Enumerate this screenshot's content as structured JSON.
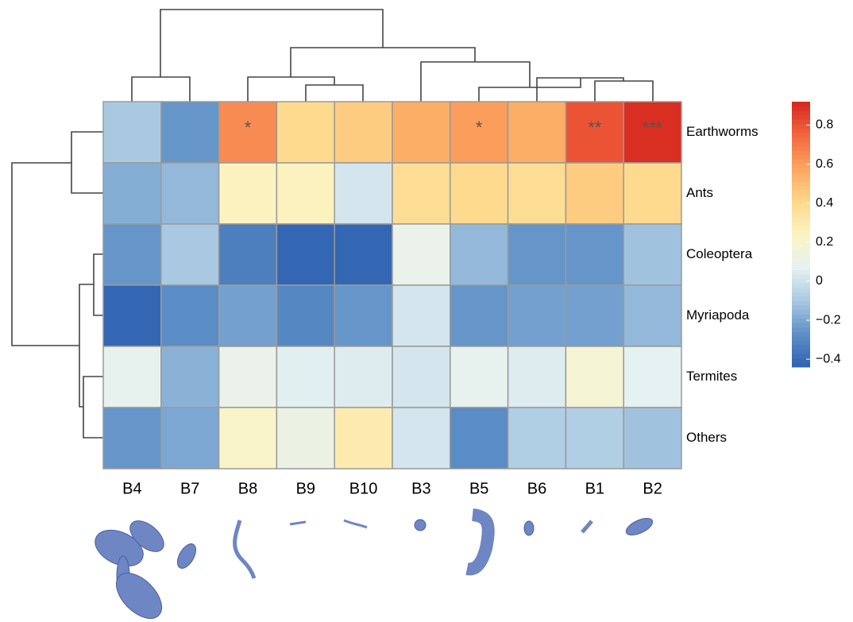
{
  "chart_data": {
    "type": "heatmap",
    "columns": [
      "B4",
      "B7",
      "B8",
      "B9",
      "B10",
      "B3",
      "B5",
      "B6",
      "B1",
      "B2"
    ],
    "rows": [
      "Earthworms",
      "Ants",
      "Coleoptera",
      "Myriapoda",
      "Termites",
      "Others"
    ],
    "values": [
      [
        -0.1,
        -0.25,
        0.65,
        0.4,
        0.45,
        0.55,
        0.6,
        0.55,
        0.8,
        0.9
      ],
      [
        -0.18,
        -0.15,
        0.25,
        0.25,
        0.02,
        0.38,
        0.4,
        0.38,
        0.45,
        0.4
      ],
      [
        -0.25,
        -0.1,
        -0.33,
        -0.42,
        -0.42,
        0.1,
        -0.15,
        -0.25,
        -0.25,
        -0.12
      ],
      [
        -0.42,
        -0.28,
        -0.22,
        -0.3,
        -0.25,
        0.02,
        -0.25,
        -0.22,
        -0.22,
        -0.15
      ],
      [
        0.08,
        -0.17,
        0.1,
        0.06,
        0.05,
        0.02,
        0.08,
        0.05,
        0.18,
        0.07
      ],
      [
        -0.25,
        -0.2,
        0.22,
        0.12,
        0.3,
        0.02,
        -0.28,
        -0.08,
        -0.08,
        -0.12
      ]
    ],
    "significance": [
      [
        null,
        null,
        "*",
        null,
        null,
        null,
        "*",
        null,
        "**",
        "***"
      ],
      [
        null,
        null,
        null,
        null,
        null,
        null,
        null,
        null,
        null,
        null
      ],
      [
        null,
        null,
        null,
        null,
        null,
        null,
        null,
        null,
        null,
        null
      ],
      [
        null,
        null,
        null,
        null,
        null,
        null,
        null,
        null,
        null,
        null
      ],
      [
        null,
        null,
        null,
        null,
        null,
        null,
        null,
        null,
        null,
        null
      ],
      [
        null,
        null,
        null,
        null,
        null,
        null,
        null,
        null,
        null,
        null
      ]
    ],
    "zlim": [
      -0.44,
      0.92
    ],
    "zticks": [
      0.8,
      0.6,
      0.4,
      0.2,
      0,
      {
        "value": -0.2,
        "label": "−0.2"
      },
      {
        "value": -0.4,
        "label": "−0.4"
      }
    ],
    "colors": [
      "#2f62b1",
      "#5d8fc6",
      "#a9c9e2",
      "#e6f1f1",
      "#fbf4c2",
      "#fdd88a",
      "#fca560",
      "#f2673f",
      "#d6261e"
    ]
  }
}
